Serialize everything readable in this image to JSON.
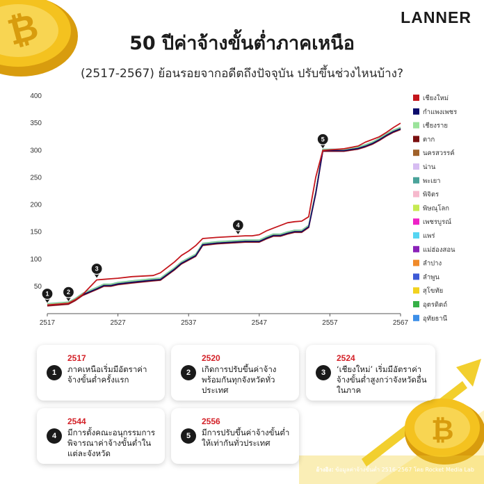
{
  "brand": "LANNER",
  "title": "50 ปีค่าจ้างขั้นต่ำภาคเหนือ",
  "subtitle": "(2517-2567) ย้อนรอยจากอดีตถึงปัจจุบัน ปรับขึ้นช่วงไหนบ้าง?",
  "colors": {
    "accent": "#d32027",
    "coin": "#f4c21f",
    "coin_dark": "#d89c0e"
  },
  "chart_data": {
    "type": "line",
    "xlim": [
      2517,
      2567
    ],
    "ylim": [
      0,
      400
    ],
    "xticks": [
      2517,
      2527,
      2537,
      2547,
      2557,
      2567
    ],
    "yticks": [
      50,
      100,
      150,
      200,
      250,
      300,
      350,
      400
    ],
    "grid": false,
    "legend_position": "right",
    "base_line": {
      "x": [
        2517,
        2520,
        2521,
        2522,
        2524,
        2525,
        2526,
        2527,
        2529,
        2532,
        2533,
        2535,
        2536,
        2537,
        2538,
        2539,
        2541,
        2545,
        2546,
        2547,
        2548,
        2549,
        2550,
        2551,
        2552,
        2553,
        2554,
        2555,
        2556,
        2557,
        2559,
        2561,
        2562,
        2563,
        2564,
        2565,
        2566,
        2567
      ],
      "y": [
        16,
        19,
        26,
        35,
        46,
        52,
        52,
        55,
        58,
        62,
        63,
        82,
        93,
        100,
        107,
        127,
        130,
        133,
        133,
        133,
        139,
        144,
        144,
        148,
        151,
        151,
        160,
        222,
        300,
        300,
        300,
        304,
        308,
        313,
        320,
        328,
        335,
        340
      ]
    },
    "chiangmai_line": {
      "x": [
        2517,
        2520,
        2521,
        2522,
        2524,
        2525,
        2526,
        2527,
        2529,
        2532,
        2533,
        2535,
        2536,
        2537,
        2538,
        2539,
        2541,
        2545,
        2546,
        2547,
        2548,
        2549,
        2550,
        2551,
        2552,
        2553,
        2554,
        2555,
        2556,
        2557,
        2559,
        2561,
        2562,
        2563,
        2564,
        2565,
        2566,
        2567
      ],
      "y": [
        16,
        19,
        26,
        35,
        62,
        63,
        64,
        65,
        68,
        70,
        75,
        95,
        107,
        115,
        125,
        138,
        140,
        143,
        143,
        145,
        152,
        157,
        162,
        167,
        169,
        170,
        178,
        251,
        300,
        301,
        303,
        308,
        315,
        320,
        325,
        333,
        342,
        350
      ]
    },
    "series": [
      {
        "name": "เชียงใหม่",
        "color": "#c4161c"
      },
      {
        "name": "กำแพงเพชร",
        "color": "#0b0b6b"
      },
      {
        "name": "เชียงราย",
        "color": "#9be39b"
      },
      {
        "name": "ตาก",
        "color": "#7a0f0f"
      },
      {
        "name": "นครสวรรค์",
        "color": "#a0612a"
      },
      {
        "name": "น่าน",
        "color": "#d7bdf2"
      },
      {
        "name": "พะเยา",
        "color": "#4aa39a"
      },
      {
        "name": "พิจิตร",
        "color": "#f6b9cd"
      },
      {
        "name": "พิษณุโลก",
        "color": "#c6ea52"
      },
      {
        "name": "เพชรบูรณ์",
        "color": "#ee22c7"
      },
      {
        "name": "แพร่",
        "color": "#56d5f2"
      },
      {
        "name": "แม่ฮ่องสอน",
        "color": "#8a22b8"
      },
      {
        "name": "ลำปาง",
        "color": "#f08a2a"
      },
      {
        "name": "ลำพูน",
        "color": "#3e5ad6"
      },
      {
        "name": "สุโขทัย",
        "color": "#f2d21f"
      },
      {
        "name": "อุตรดิตถ์",
        "color": "#36b047"
      },
      {
        "name": "อุทัยธานี",
        "color": "#3d8fe8"
      }
    ],
    "markers": [
      {
        "label": "1",
        "x": 2517,
        "y": 16
      },
      {
        "label": "2",
        "x": 2520,
        "y": 19
      },
      {
        "label": "3",
        "x": 2524,
        "y": 62
      },
      {
        "label": "4",
        "x": 2544,
        "y": 142
      },
      {
        "label": "5",
        "x": 2556,
        "y": 300
      }
    ]
  },
  "events": [
    {
      "num": "1",
      "year": "2517",
      "text": "ภาคเหนือเริ่มมีอัตราค่าจ้างขั้นต่ำครั้งแรก"
    },
    {
      "num": "2",
      "year": "2520",
      "text": "เกิดการปรับขึ้นค่าจ้างพร้อมกันทุกจังหวัดทั่วประเทศ"
    },
    {
      "num": "3",
      "year": "2524",
      "text": "‘เชียงใหม่’ เริ่มมีอัตราค่าจ้างขั้นต่ำสูงกว่าจังหวัดอื่นในภาค"
    },
    {
      "num": "4",
      "year": "2544",
      "text": "มีการตั้งคณะอนุกรรมการพิจารณาค่าจ้างขั้นต่ำในแต่ละจังหวัด"
    },
    {
      "num": "5",
      "year": "2556",
      "text": "มีการปรับขึ้นค่าจ้างขั้นต่ำให้เท่ากันทั่วประเทศ"
    }
  ],
  "source_label": "อ้างอิง:",
  "source_text": "ข้อมูลค่าจ้างขั้นต่ำ 2516-2567 โดย Rocket Media Lab"
}
